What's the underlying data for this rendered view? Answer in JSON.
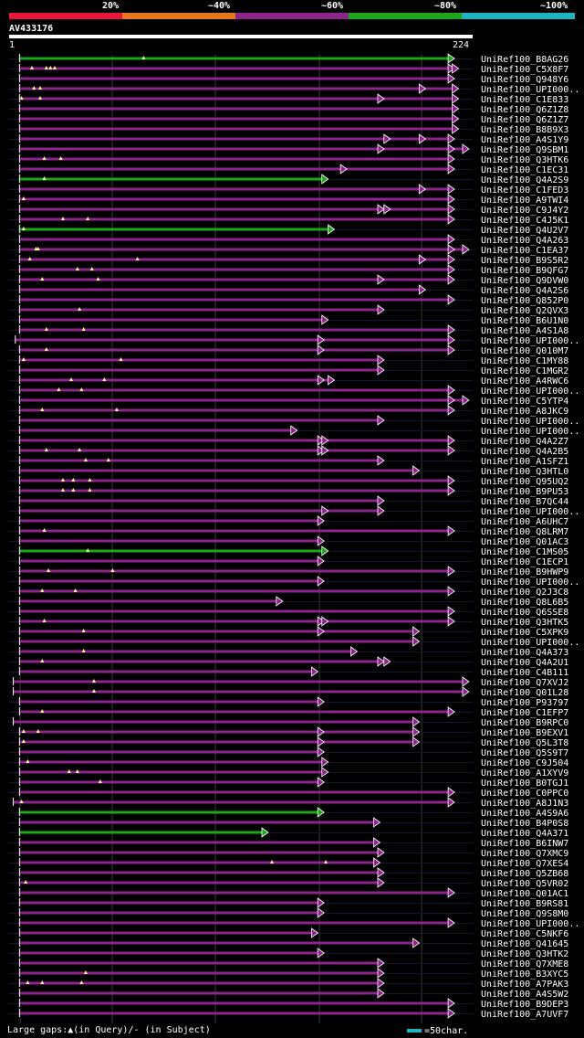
{
  "legend": {
    "labels": [
      "20%",
      "~40%",
      "~60%",
      "~80%",
      "~100%"
    ],
    "colors": [
      "#e8163a",
      "#e8761a",
      "#8d258a",
      "#1da61a",
      "#1fb3bf"
    ]
  },
  "query": {
    "id": "AV433176",
    "start": "1",
    "end": "224"
  },
  "footer": {
    "gaps_text": "Large gaps:▲(in Query)/- (in Subject)",
    "scale_text": "=50char."
  },
  "chart_data": {
    "type": "alignment-overview",
    "query_length": 224,
    "hits": [
      {
        "id": "UniRef100_B8AG26",
        "color": "green",
        "start": 5,
        "end": 213,
        "arrows": [
          213
        ],
        "marks": [
          65
        ]
      },
      {
        "id": "UniRef100_C5X8F7",
        "color": "purple",
        "start": 5,
        "end": 213,
        "arrows": [
          213,
          215
        ],
        "marks": [
          11,
          18,
          20,
          22
        ]
      },
      {
        "id": "UniRef100_Q948Y6",
        "color": "purple",
        "start": 5,
        "end": 213,
        "arrows": [
          213
        ],
        "marks": []
      },
      {
        "id": "UniRef100_UPI000..",
        "color": "purple",
        "start": 5,
        "end": 215,
        "arrows": [
          199,
          215
        ],
        "marks": [
          12,
          15
        ]
      },
      {
        "id": "UniRef100_C1E833",
        "color": "purple",
        "start": 5,
        "end": 215,
        "arrows": [
          179,
          215
        ],
        "marks": [
          6,
          15
        ]
      },
      {
        "id": "UniRef100_Q6Z1Z8",
        "color": "purple",
        "start": 5,
        "end": 215,
        "arrows": [
          215
        ],
        "marks": []
      },
      {
        "id": "UniRef100_Q6Z1Z7",
        "color": "purple",
        "start": 5,
        "end": 215,
        "arrows": [
          215
        ],
        "marks": []
      },
      {
        "id": "UniRef100_B8B9X3",
        "color": "purple",
        "start": 5,
        "end": 215,
        "arrows": [
          215
        ],
        "marks": []
      },
      {
        "id": "UniRef100_A4S1Y9",
        "color": "purple",
        "start": 5,
        "end": 213,
        "arrows": [
          182,
          199,
          213
        ],
        "marks": []
      },
      {
        "id": "UniRef100_Q9SBM1",
        "color": "purple",
        "start": 5,
        "end": 220,
        "arrows": [
          179,
          213,
          220
        ],
        "marks": []
      },
      {
        "id": "UniRef100_Q3HTK6",
        "color": "purple",
        "start": 5,
        "end": 213,
        "arrows": [
          213
        ],
        "marks": [
          17,
          25
        ]
      },
      {
        "id": "UniRef100_C1EC31",
        "color": "purple",
        "start": 5,
        "end": 213,
        "arrows": [
          161,
          213
        ],
        "marks": []
      },
      {
        "id": "UniRef100_Q4A2S9",
        "color": "green",
        "start": 5,
        "end": 152,
        "arrows": [
          152
        ],
        "marks": [
          17
        ]
      },
      {
        "id": "UniRef100_C1FED3",
        "color": "purple",
        "start": 5,
        "end": 213,
        "arrows": [
          199,
          213
        ],
        "marks": []
      },
      {
        "id": "UniRef100_A9TWI4",
        "color": "purple",
        "start": 5,
        "end": 213,
        "arrows": [
          213
        ],
        "marks": [
          7
        ]
      },
      {
        "id": "UniRef100_C9J4Y2",
        "color": "purple",
        "start": 5,
        "end": 213,
        "arrows": [
          179,
          182,
          213
        ],
        "marks": []
      },
      {
        "id": "UniRef100_C4J5K1",
        "color": "purple",
        "start": 5,
        "end": 213,
        "arrows": [
          213
        ],
        "marks": [
          26,
          38
        ]
      },
      {
        "id": "UniRef100_Q4U2V7",
        "color": "green",
        "start": 5,
        "end": 155,
        "arrows": [
          155
        ],
        "marks": [
          7
        ]
      },
      {
        "id": "UniRef100_Q4A263",
        "color": "purple",
        "start": 5,
        "end": 213,
        "arrows": [
          213
        ],
        "marks": []
      },
      {
        "id": "UniRef100_C1EA37",
        "color": "purple",
        "start": 5,
        "end": 220,
        "arrows": [
          213,
          220
        ],
        "marks": [
          13,
          14
        ]
      },
      {
        "id": "UniRef100_B9S5R2",
        "color": "purple",
        "start": 5,
        "end": 213,
        "arrows": [
          199,
          213
        ],
        "marks": [
          10,
          62
        ]
      },
      {
        "id": "UniRef100_B9QFG7",
        "color": "purple",
        "start": 5,
        "end": 213,
        "arrows": [
          213
        ],
        "marks": [
          33,
          40
        ]
      },
      {
        "id": "UniRef100_Q9DVW0",
        "color": "purple",
        "start": 5,
        "end": 213,
        "arrows": [
          179,
          213
        ],
        "marks": [
          16,
          43
        ]
      },
      {
        "id": "UniRef100_Q4A2S6",
        "color": "purple",
        "start": 5,
        "end": 199,
        "arrows": [
          199
        ],
        "marks": []
      },
      {
        "id": "UniRef100_Q852P0",
        "color": "purple",
        "start": 5,
        "end": 213,
        "arrows": [
          213
        ],
        "marks": []
      },
      {
        "id": "UniRef100_Q2QVX3",
        "color": "purple",
        "start": 5,
        "end": 179,
        "arrows": [
          179
        ],
        "marks": [
          34
        ]
      },
      {
        "id": "UniRef100_B6U1N0",
        "color": "purple",
        "start": 5,
        "end": 152,
        "arrows": [
          152
        ],
        "marks": []
      },
      {
        "id": "UniRef100_A4S1A8",
        "color": "purple",
        "start": 5,
        "end": 213,
        "arrows": [
          213
        ],
        "marks": [
          18,
          36
        ]
      },
      {
        "id": "UniRef100_UPI000..",
        "color": "purple",
        "start": 3,
        "end": 213,
        "arrows": [
          150,
          213
        ],
        "marks": []
      },
      {
        "id": "UniRef100_Q010M7",
        "color": "purple",
        "start": 5,
        "end": 213,
        "arrows": [
          150,
          213
        ],
        "marks": [
          18
        ]
      },
      {
        "id": "UniRef100_C1MY88",
        "color": "purple",
        "start": 5,
        "end": 179,
        "arrows": [
          179
        ],
        "marks": [
          7,
          54
        ]
      },
      {
        "id": "UniRef100_C1MGR2",
        "color": "purple",
        "start": 5,
        "end": 179,
        "arrows": [
          179
        ],
        "marks": []
      },
      {
        "id": "UniRef100_A4RWC6",
        "color": "purple",
        "start": 5,
        "end": 155,
        "arrows": [
          150,
          155
        ],
        "marks": [
          30,
          46
        ]
      },
      {
        "id": "UniRef100_UPI000..",
        "color": "purple",
        "start": 5,
        "end": 213,
        "arrows": [
          213
        ],
        "marks": [
          24,
          35
        ]
      },
      {
        "id": "UniRef100_C5YTP4",
        "color": "purple",
        "start": 5,
        "end": 220,
        "arrows": [
          213,
          220
        ],
        "marks": []
      },
      {
        "id": "UniRef100_A8JKC9",
        "color": "purple",
        "start": 5,
        "end": 213,
        "arrows": [
          213
        ],
        "marks": [
          16,
          52
        ]
      },
      {
        "id": "UniRef100_UPI000..",
        "color": "purple",
        "start": 5,
        "end": 179,
        "arrows": [
          179
        ],
        "marks": []
      },
      {
        "id": "UniRef100_UPI000..",
        "color": "purple",
        "start": 5,
        "end": 137,
        "arrows": [
          137
        ],
        "marks": []
      },
      {
        "id": "UniRef100_Q4A2Z7",
        "color": "purple",
        "start": 5,
        "end": 213,
        "arrows": [
          150,
          152,
          213
        ],
        "marks": []
      },
      {
        "id": "UniRef100_Q4A2B5",
        "color": "purple",
        "start": 5,
        "end": 213,
        "arrows": [
          150,
          152,
          213
        ],
        "marks": [
          18,
          34
        ]
      },
      {
        "id": "UniRef100_A1SFZ1",
        "color": "purple",
        "start": 5,
        "end": 179,
        "arrows": [
          179
        ],
        "marks": [
          37,
          48
        ]
      },
      {
        "id": "UniRef100_Q3HTL0",
        "color": "purple",
        "start": 5,
        "end": 196,
        "arrows": [
          196
        ],
        "marks": []
      },
      {
        "id": "UniRef100_Q95UQ2",
        "color": "purple",
        "start": 5,
        "end": 213,
        "arrows": [
          213
        ],
        "marks": [
          26,
          31,
          39
        ]
      },
      {
        "id": "UniRef100_B9PU53",
        "color": "purple",
        "start": 5,
        "end": 213,
        "arrows": [
          213
        ],
        "marks": [
          26,
          31,
          39
        ]
      },
      {
        "id": "UniRef100_B7QC44",
        "color": "purple",
        "start": 5,
        "end": 179,
        "arrows": [
          179
        ],
        "marks": []
      },
      {
        "id": "UniRef100_UPI000..",
        "color": "purple",
        "start": 5,
        "end": 179,
        "arrows": [
          152,
          179
        ],
        "marks": []
      },
      {
        "id": "UniRef100_A6UHC7",
        "color": "purple",
        "start": 5,
        "end": 150,
        "arrows": [
          150
        ],
        "marks": []
      },
      {
        "id": "UniRef100_Q8LRM7",
        "color": "purple",
        "start": 5,
        "end": 213,
        "arrows": [
          213
        ],
        "marks": [
          17
        ]
      },
      {
        "id": "UniRef100_Q01AC3",
        "color": "purple",
        "start": 5,
        "end": 150,
        "arrows": [
          150
        ],
        "marks": []
      },
      {
        "id": "UniRef100_C1MS05",
        "color": "green",
        "start": 5,
        "end": 152,
        "arrows": [
          152
        ],
        "marks": [
          38
        ]
      },
      {
        "id": "UniRef100_C1ECP1",
        "color": "purple",
        "start": 5,
        "end": 150,
        "arrows": [
          150
        ],
        "marks": []
      },
      {
        "id": "UniRef100_B9HWP9",
        "color": "purple",
        "start": 5,
        "end": 213,
        "arrows": [
          213
        ],
        "marks": [
          19,
          50
        ]
      },
      {
        "id": "UniRef100_UPI000..",
        "color": "purple",
        "start": 5,
        "end": 150,
        "arrows": [
          150
        ],
        "marks": []
      },
      {
        "id": "UniRef100_Q2J3C8",
        "color": "purple",
        "start": 5,
        "end": 213,
        "arrows": [
          213
        ],
        "marks": [
          16,
          32
        ]
      },
      {
        "id": "UniRef100_Q8L6B5",
        "color": "purple",
        "start": 5,
        "end": 130,
        "arrows": [
          130
        ],
        "marks": []
      },
      {
        "id": "UniRef100_Q6SSE8",
        "color": "purple",
        "start": 5,
        "end": 213,
        "arrows": [
          213
        ],
        "marks": []
      },
      {
        "id": "UniRef100_Q3HTK5",
        "color": "purple",
        "start": 5,
        "end": 213,
        "arrows": [
          150,
          152,
          213
        ],
        "marks": [
          17
        ]
      },
      {
        "id": "UniRef100_C5XPK9",
        "color": "purple",
        "start": 5,
        "end": 196,
        "arrows": [
          150,
          196
        ],
        "marks": [
          36
        ]
      },
      {
        "id": "UniRef100_UPI000..",
        "color": "purple",
        "start": 5,
        "end": 196,
        "arrows": [
          196
        ],
        "marks": []
      },
      {
        "id": "UniRef100_Q4A373",
        "color": "purple",
        "start": 5,
        "end": 166,
        "arrows": [
          166
        ],
        "marks": [
          36
        ]
      },
      {
        "id": "UniRef100_Q4A2U1",
        "color": "purple",
        "start": 5,
        "end": 182,
        "arrows": [
          179,
          182
        ],
        "marks": [
          16
        ]
      },
      {
        "id": "UniRef100_C4B111",
        "color": "purple",
        "start": 5,
        "end": 147,
        "arrows": [
          147
        ],
        "marks": []
      },
      {
        "id": "UniRef100_Q7XVJ2",
        "color": "purple",
        "start": 2,
        "end": 220,
        "arrows": [
          220
        ],
        "marks": [
          41
        ]
      },
      {
        "id": "UniRef100_Q01L28",
        "color": "purple",
        "start": 2,
        "end": 220,
        "arrows": [
          220
        ],
        "marks": [
          41
        ]
      },
      {
        "id": "UniRef100_P93797",
        "color": "purple",
        "start": 5,
        "end": 150,
        "arrows": [
          150
        ],
        "marks": []
      },
      {
        "id": "UniRef100_C1EFP7",
        "color": "purple",
        "start": 5,
        "end": 213,
        "arrows": [
          213
        ],
        "marks": [
          16
        ]
      },
      {
        "id": "UniRef100_B9RPC0",
        "color": "purple",
        "start": 2,
        "end": 196,
        "arrows": [
          196
        ],
        "marks": []
      },
      {
        "id": "UniRef100_B9EXV1",
        "color": "purple",
        "start": 5,
        "end": 196,
        "arrows": [
          150,
          196
        ],
        "marks": [
          7,
          14
        ]
      },
      {
        "id": "UniRef100_Q5L3T8",
        "color": "purple",
        "start": 5,
        "end": 196,
        "arrows": [
          150,
          196
        ],
        "marks": [
          7
        ]
      },
      {
        "id": "UniRef100_Q5S9T7",
        "color": "purple",
        "start": 5,
        "end": 150,
        "arrows": [
          150
        ],
        "marks": []
      },
      {
        "id": "UniRef100_C9J504",
        "color": "purple",
        "start": 5,
        "end": 152,
        "arrows": [
          152
        ],
        "marks": [
          9
        ]
      },
      {
        "id": "UniRef100_A1XYV9",
        "color": "purple",
        "start": 5,
        "end": 152,
        "arrows": [
          152
        ],
        "marks": [
          29,
          33
        ]
      },
      {
        "id": "UniRef100_B0TGJ1",
        "color": "purple",
        "start": 5,
        "end": 150,
        "arrows": [
          150
        ],
        "marks": [
          44
        ]
      },
      {
        "id": "UniRef100_C0PPC0",
        "color": "purple",
        "start": 5,
        "end": 213,
        "arrows": [
          213
        ],
        "marks": []
      },
      {
        "id": "UniRef100_A8J1N3",
        "color": "purple",
        "start": 2,
        "end": 213,
        "arrows": [
          213
        ],
        "marks": [
          6
        ]
      },
      {
        "id": "UniRef100_A4S9A6",
        "color": "green",
        "start": 5,
        "end": 150,
        "arrows": [
          150
        ],
        "marks": []
      },
      {
        "id": "UniRef100_B4P0S8",
        "color": "purple",
        "start": 5,
        "end": 177,
        "arrows": [
          177
        ],
        "marks": []
      },
      {
        "id": "UniRef100_Q4A371",
        "color": "green",
        "start": 5,
        "end": 123,
        "arrows": [
          123
        ],
        "marks": []
      },
      {
        "id": "UniRef100_B6INW7",
        "color": "purple",
        "start": 5,
        "end": 177,
        "arrows": [
          177
        ],
        "marks": []
      },
      {
        "id": "UniRef100_Q7XMC9",
        "color": "purple",
        "start": 5,
        "end": 179,
        "arrows": [
          179
        ],
        "marks": []
      },
      {
        "id": "UniRef100_Q7XES4",
        "color": "purple",
        "start": 5,
        "end": 177,
        "arrows": [
          177
        ],
        "marks": [
          127,
          153
        ]
      },
      {
        "id": "UniRef100_Q5ZB68",
        "color": "purple",
        "start": 5,
        "end": 179,
        "arrows": [
          179
        ],
        "marks": []
      },
      {
        "id": "UniRef100_Q5VR02",
        "color": "purple",
        "start": 5,
        "end": 179,
        "arrows": [
          179
        ],
        "marks": [
          8
        ]
      },
      {
        "id": "UniRef100_Q01AC1",
        "color": "purple",
        "start": 5,
        "end": 213,
        "arrows": [
          213
        ],
        "marks": []
      },
      {
        "id": "UniRef100_B9RS81",
        "color": "purple",
        "start": 5,
        "end": 150,
        "arrows": [
          150
        ],
        "marks": []
      },
      {
        "id": "UniRef100_Q9S8M0",
        "color": "purple",
        "start": 5,
        "end": 150,
        "arrows": [
          150
        ],
        "marks": []
      },
      {
        "id": "UniRef100_UPI000..",
        "color": "purple",
        "start": 5,
        "end": 213,
        "arrows": [
          213
        ],
        "marks": []
      },
      {
        "id": "UniRef100_C5NKF6",
        "color": "purple",
        "start": 5,
        "end": 147,
        "arrows": [
          147
        ],
        "marks": []
      },
      {
        "id": "UniRef100_Q41645",
        "color": "purple",
        "start": 5,
        "end": 196,
        "arrows": [
          196
        ],
        "marks": []
      },
      {
        "id": "UniRef100_Q3HTK2",
        "color": "purple",
        "start": 5,
        "end": 150,
        "arrows": [
          150
        ],
        "marks": []
      },
      {
        "id": "UniRef100_Q7XME8",
        "color": "purple",
        "start": 5,
        "end": 179,
        "arrows": [
          179
        ],
        "marks": []
      },
      {
        "id": "UniRef100_B3XYC5",
        "color": "purple",
        "start": 5,
        "end": 179,
        "arrows": [
          179
        ],
        "marks": [
          37
        ]
      },
      {
        "id": "UniRef100_A7PAK3",
        "color": "purple",
        "start": 5,
        "end": 179,
        "arrows": [
          179
        ],
        "marks": [
          9,
          16,
          35
        ]
      },
      {
        "id": "UniRef100_A4S5W2",
        "color": "purple",
        "start": 5,
        "end": 179,
        "arrows": [
          179
        ],
        "marks": []
      },
      {
        "id": "UniRef100_B9DEP3",
        "color": "purple",
        "start": 5,
        "end": 213,
        "arrows": [
          213
        ],
        "marks": []
      },
      {
        "id": "UniRef100_A7UVF7",
        "color": "purple",
        "start": 5,
        "end": 213,
        "arrows": [
          213
        ],
        "marks": []
      }
    ]
  }
}
